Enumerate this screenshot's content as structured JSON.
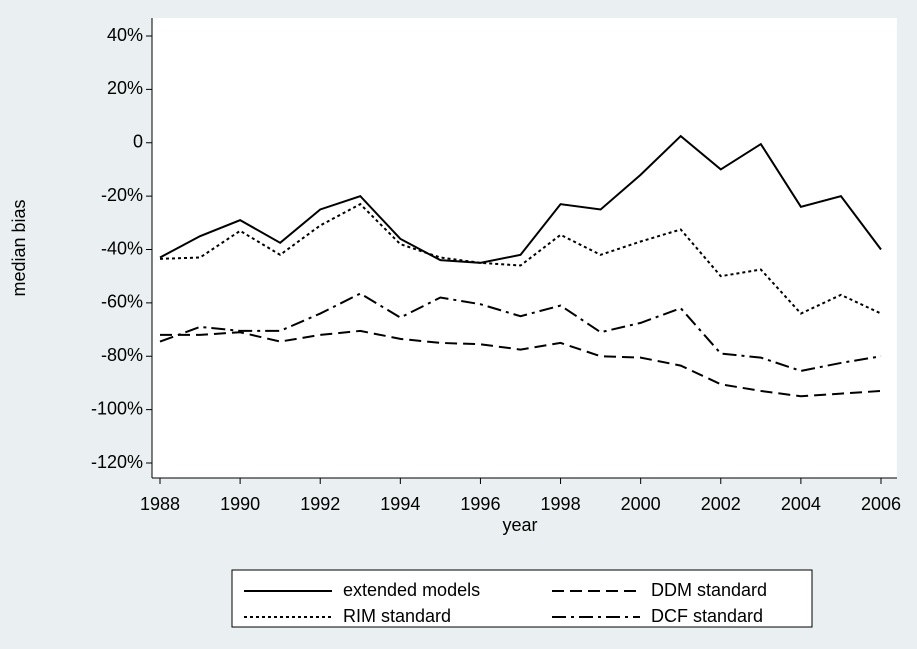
{
  "chart_data": {
    "type": "line",
    "x_label": "year",
    "y_label": "median bias",
    "x": [
      1988,
      1989,
      1990,
      1991,
      1992,
      1993,
      1994,
      1995,
      1996,
      1997,
      1998,
      1999,
      2000,
      2001,
      2002,
      2003,
      2004,
      2005,
      2006
    ],
    "series": [
      {
        "name": "extended models",
        "color": "#000000",
        "dash": "solid",
        "values": [
          -43,
          -35,
          -29,
          -37.5,
          -25,
          -20,
          -36,
          -44,
          -45,
          -42,
          -23,
          -25,
          -12,
          2.5,
          -10,
          -0.5,
          -24,
          -20,
          -40
        ]
      },
      {
        "name": "DDM standard",
        "color": "#000000",
        "dash": "dash",
        "values": [
          -72,
          -72,
          -71,
          -74.5,
          -72,
          -70.5,
          -73.5,
          -75,
          -75.5,
          -77.5,
          -75,
          -80,
          -80.5,
          -83.5,
          -90.5,
          -93,
          -95,
          -94,
          -93
        ]
      },
      {
        "name": "RIM standard",
        "color": "#000000",
        "dash": "dot",
        "values": [
          -43.5,
          -43,
          -33,
          -42,
          -31,
          -23,
          -38,
          -43,
          -45,
          -46,
          -34.5,
          -42,
          -37,
          -32.5,
          -50,
          -47.5,
          -64,
          -57,
          -64
        ]
      },
      {
        "name": "DCF standard",
        "color": "#000000",
        "dash": "dashdot",
        "values": [
          -74.5,
          -69,
          -70.5,
          -70.5,
          -64,
          -56.5,
          -65.5,
          -58,
          -60.5,
          -65,
          -61,
          -71,
          -67.5,
          -62,
          -79,
          -80.5,
          -85.5,
          -82.5,
          -80
        ]
      }
    ],
    "xlim": [
      1988,
      2006
    ],
    "xticks": [
      1988,
      1990,
      1992,
      1994,
      1996,
      1998,
      2000,
      2002,
      2004,
      2006
    ],
    "ylim": [
      -120,
      40
    ],
    "yticks": [
      {
        "value": -120,
        "label": "-120%"
      },
      {
        "value": -100,
        "label": "-100%"
      },
      {
        "value": -80,
        "label": "-80%"
      },
      {
        "value": -60,
        "label": "-60%"
      },
      {
        "value": -40,
        "label": "-40%"
      },
      {
        "value": -20,
        "label": "-20%"
      },
      {
        "value": 0,
        "label": "0"
      },
      {
        "value": 20,
        "label": "20%"
      },
      {
        "value": 40,
        "label": "40%"
      }
    ],
    "grid": false,
    "legend": "bottom"
  }
}
